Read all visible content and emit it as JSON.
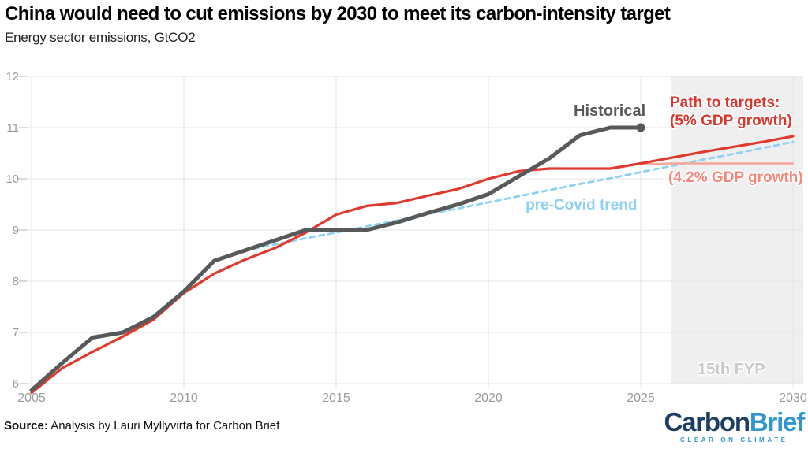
{
  "header": {
    "title": "China would need to cut emissions by 2030 to meet its carbon-intensity target",
    "subtitle": "Energy sector emissions, GtCO2"
  },
  "chart_data": {
    "type": "line",
    "title": "China would need to cut emissions by 2030 to meet its carbon-intensity target",
    "ylabel": "Energy sector emissions, GtCO2",
    "xlim": [
      2005,
      2030
    ],
    "ylim": [
      6,
      12
    ],
    "x_ticks": [
      2005,
      2010,
      2015,
      2020,
      2025,
      2030
    ],
    "y_ticks": [
      6,
      7,
      8,
      9,
      10,
      11,
      12
    ],
    "grid": true,
    "legend_position": "inline-annotations",
    "shaded_region": {
      "label": "15th FYP",
      "x_start": 2026,
      "x_end": 2030,
      "color": "#efefef"
    },
    "series": [
      {
        "name": "pre-Covid trend",
        "style": "dashed",
        "color": "#8ed1f2",
        "width": 2.8,
        "x_start": 2012,
        "values": [
          8.6,
          8.72,
          8.84,
          8.95,
          9.07,
          9.19,
          9.31,
          9.42,
          9.54,
          9.66,
          9.78,
          9.9,
          10.01,
          10.13,
          10.25,
          10.37,
          10.48,
          10.6,
          10.72
        ]
      },
      {
        "name": "Path to targets (4.2% GDP growth)",
        "style": "solid",
        "color": "#f5a59c",
        "width": 2.5,
        "x_start": 2025,
        "values": [
          10.28,
          10.3,
          10.3,
          10.3,
          10.3,
          10.3
        ]
      },
      {
        "name": "Path to targets (5% GDP growth)",
        "style": "solid",
        "color": "#e0392e",
        "width": 3.2,
        "x_start": 2005,
        "values": [
          5.82,
          6.3,
          6.62,
          6.92,
          7.25,
          7.77,
          8.15,
          8.42,
          8.65,
          8.95,
          9.3,
          9.47,
          9.53,
          9.67,
          9.8,
          10.0,
          10.15,
          10.2,
          10.2,
          10.2,
          10.3,
          10.41,
          10.52,
          10.62,
          10.72,
          10.83
        ]
      },
      {
        "name": "Historical",
        "style": "solid",
        "color": "#58595b",
        "width": 5,
        "x_start": 2005,
        "endpoint_dot": true,
        "values": [
          5.87,
          6.4,
          6.9,
          7.0,
          7.3,
          7.8,
          8.4,
          8.6,
          8.8,
          9.0,
          9.0,
          9.0,
          9.15,
          9.33,
          9.5,
          9.7,
          10.05,
          10.4,
          10.85,
          11.0,
          11.0
        ]
      }
    ],
    "annotations": {
      "historical": "Historical",
      "path_line1": "Path to targets:",
      "path_line2": "(5% GDP growth)",
      "path_42": "(4.2% GDP growth)",
      "precovid": "pre-Covid trend",
      "fyp": "15th FYP"
    },
    "axis_color": "#9b9b9b",
    "grid_color": "#e4e4e4",
    "tick_color": "#c9c9c9"
  },
  "footer": {
    "source_label": "Source:",
    "source_text": " Analysis by Lauri Myllyvirta for Carbon Brief",
    "logo": {
      "part1": "Carbon",
      "part2": "Brief",
      "tagline": "CLEAR ON CLIMATE"
    }
  }
}
